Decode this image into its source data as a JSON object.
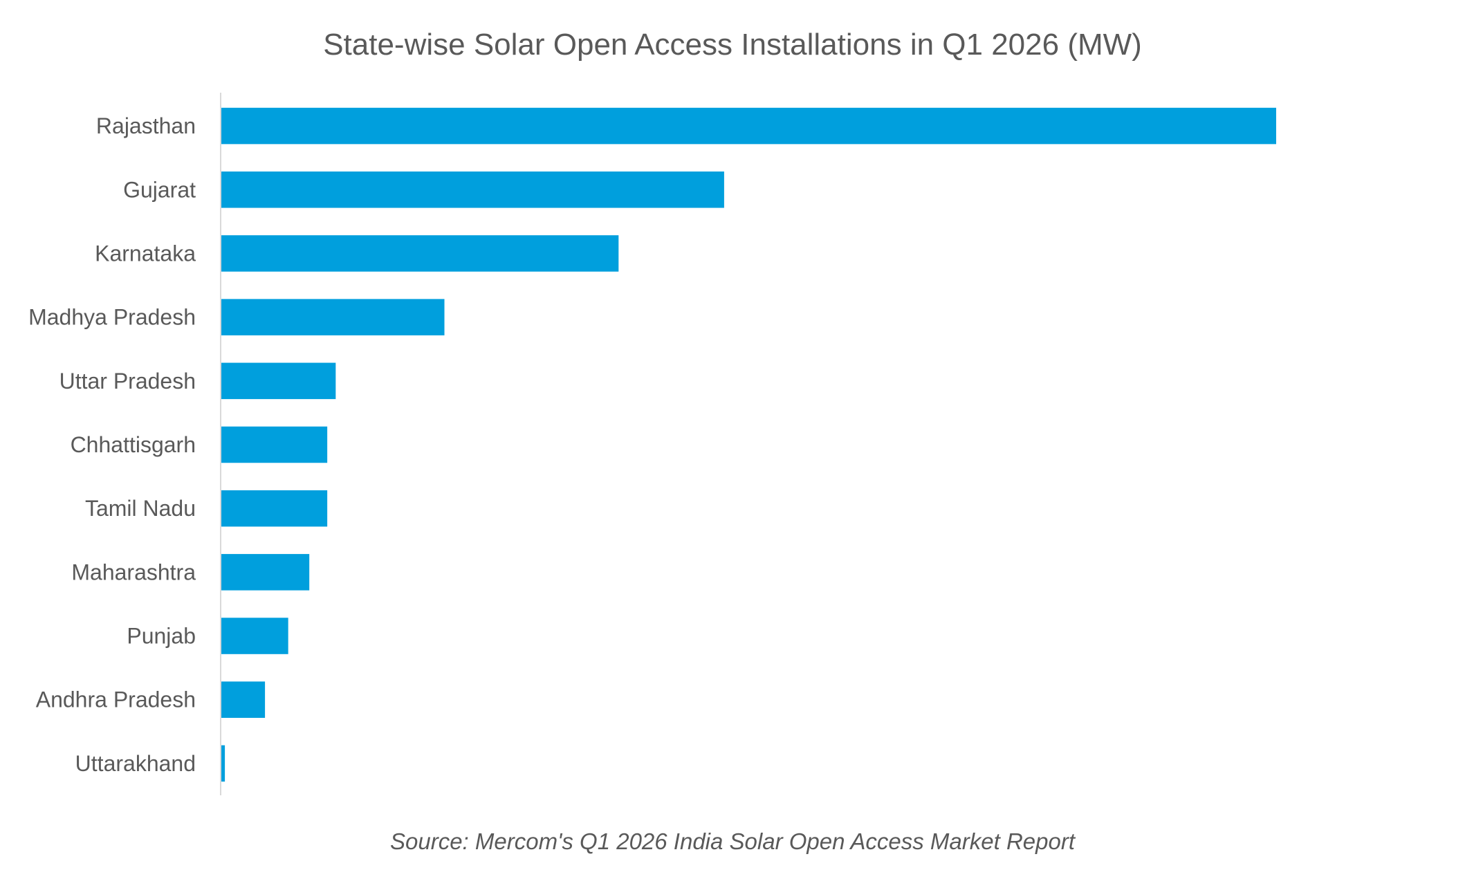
{
  "chart_data": {
    "type": "bar",
    "orientation": "horizontal",
    "title": "State-wise Solar Open Access Installations in Q1 2026 (MW)",
    "source": "Source: Mercom's Q1 2026 India Solar Open Access Market Report",
    "categories": [
      "Rajasthan",
      "Gujarat",
      "Karnataka",
      "Madhya Pradesh",
      "Uttar Pradesh",
      "Chhattisgarh",
      "Tamil Nadu",
      "Maharashtra",
      "Punjab",
      "Andhra Pradesh",
      "Uttarakhand"
    ],
    "values": [
      1000,
      477,
      377,
      212,
      109,
      101,
      101,
      84,
      64,
      42,
      4
    ],
    "xlim": [
      0,
      1000
    ],
    "grid": false,
    "legend": "none",
    "bar_color": "#009FDD",
    "axis_color": "#D9D9D9"
  }
}
